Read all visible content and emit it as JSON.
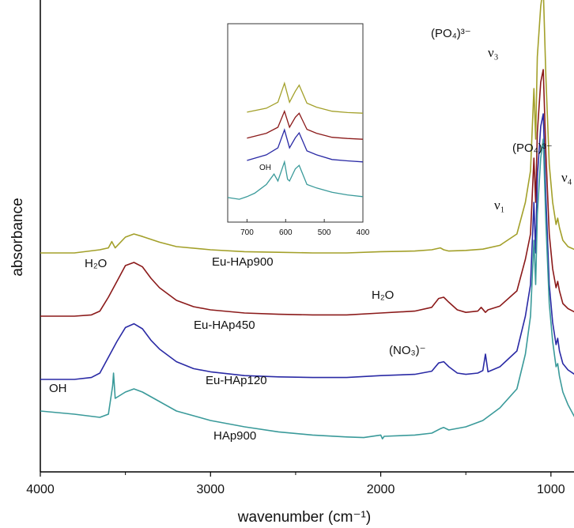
{
  "chart_data": {
    "type": "line",
    "xlabel": "wavenumber (cm⁻¹)",
    "ylabel": "absorbance",
    "xlim": [
      4000,
      400
    ],
    "x_ticks": [
      "4000",
      "3000",
      "2000",
      "1000"
    ],
    "series": [
      {
        "name": "Eu-HAp900",
        "color": "#a3a02a",
        "offset": 3.0,
        "x": [
          4000,
          3800,
          3650,
          3600,
          3580,
          3560,
          3500,
          3450,
          3400,
          3300,
          3200,
          3000,
          2800,
          2600,
          2400,
          2200,
          2000,
          1800,
          1700,
          1650,
          1630,
          1600,
          1500,
          1400,
          1300,
          1200,
          1150,
          1120,
          1100,
          1090,
          1080,
          1060,
          1045,
          1030,
          1010,
          990,
          970,
          960,
          950,
          930,
          900,
          850,
          800,
          700,
          650,
          620,
          603,
          590,
          575,
          565,
          545,
          520,
          480,
          440,
          400
        ],
        "y": [
          0.0,
          0.0,
          0.05,
          0.08,
          0.18,
          0.08,
          0.25,
          0.3,
          0.26,
          0.17,
          0.1,
          0.05,
          0.02,
          0.01,
          0.0,
          0.0,
          0.02,
          0.03,
          0.05,
          0.08,
          0.05,
          0.03,
          0.04,
          0.06,
          0.12,
          0.3,
          0.8,
          1.3,
          2.6,
          1.8,
          3.1,
          3.9,
          4.2,
          2.8,
          1.4,
          0.8,
          0.45,
          0.55,
          0.4,
          0.2,
          0.1,
          0.04,
          0.02,
          0.05,
          0.25,
          0.55,
          1.5,
          0.55,
          1.1,
          1.4,
          0.5,
          0.3,
          0.1,
          0.03,
          0.0
        ]
      },
      {
        "name": "Eu-HAp450",
        "color": "#8b1a1a",
        "offset": 2.0,
        "x": [
          4000,
          3800,
          3700,
          3650,
          3600,
          3550,
          3500,
          3450,
          3400,
          3350,
          3300,
          3200,
          3100,
          3000,
          2800,
          2600,
          2400,
          2200,
          2000,
          1800,
          1700,
          1660,
          1630,
          1600,
          1550,
          1500,
          1430,
          1410,
          1385,
          1370,
          1300,
          1200,
          1150,
          1120,
          1100,
          1090,
          1080,
          1060,
          1045,
          1030,
          1010,
          990,
          970,
          960,
          950,
          930,
          900,
          850,
          800,
          700,
          650,
          620,
          603,
          590,
          575,
          565,
          545,
          520,
          480,
          440,
          400
        ],
        "y": [
          0.0,
          0.0,
          0.02,
          0.08,
          0.3,
          0.55,
          0.8,
          0.85,
          0.78,
          0.6,
          0.45,
          0.25,
          0.15,
          0.1,
          0.05,
          0.03,
          0.02,
          0.02,
          0.05,
          0.08,
          0.14,
          0.28,
          0.3,
          0.22,
          0.1,
          0.06,
          0.08,
          0.14,
          0.06,
          0.1,
          0.16,
          0.4,
          0.9,
          1.3,
          2.5,
          1.8,
          2.9,
          3.7,
          3.9,
          2.6,
          1.3,
          0.75,
          0.45,
          0.55,
          0.4,
          0.2,
          0.12,
          0.05,
          0.03,
          0.06,
          0.3,
          0.6,
          1.4,
          0.6,
          1.1,
          1.3,
          0.5,
          0.3,
          0.1,
          0.04,
          0.0
        ]
      },
      {
        "name": "Eu-HAp120",
        "color": "#2a2aa5",
        "offset": 1.0,
        "x": [
          4000,
          3800,
          3700,
          3650,
          3600,
          3550,
          3500,
          3450,
          3400,
          3350,
          3300,
          3200,
          3100,
          3000,
          2800,
          2600,
          2400,
          2200,
          2000,
          1800,
          1700,
          1660,
          1630,
          1600,
          1550,
          1500,
          1430,
          1400,
          1385,
          1370,
          1300,
          1200,
          1150,
          1120,
          1100,
          1090,
          1080,
          1060,
          1045,
          1030,
          1010,
          990,
          970,
          960,
          950,
          930,
          900,
          850,
          800,
          700,
          650,
          620,
          603,
          590,
          575,
          565,
          545,
          520,
          480,
          440,
          400
        ],
        "y": [
          0.0,
          0.0,
          0.03,
          0.1,
          0.35,
          0.6,
          0.82,
          0.88,
          0.8,
          0.62,
          0.48,
          0.28,
          0.17,
          0.12,
          0.06,
          0.04,
          0.03,
          0.03,
          0.06,
          0.08,
          0.13,
          0.26,
          0.28,
          0.2,
          0.1,
          0.08,
          0.1,
          0.14,
          0.4,
          0.12,
          0.2,
          0.45,
          1.0,
          1.5,
          2.8,
          2.0,
          3.2,
          4.0,
          4.2,
          2.9,
          1.5,
          0.9,
          0.55,
          0.65,
          0.45,
          0.25,
          0.15,
          0.06,
          0.04,
          0.07,
          0.35,
          0.7,
          1.6,
          0.7,
          1.2,
          1.45,
          0.55,
          0.35,
          0.12,
          0.05,
          0.0
        ]
      },
      {
        "name": "HAp900",
        "color": "#3a9a9a",
        "offset": 0.0,
        "x": [
          4000,
          3800,
          3650,
          3600,
          3575,
          3570,
          3560,
          3500,
          3450,
          3400,
          3300,
          3200,
          3000,
          2800,
          2600,
          2400,
          2200,
          2100,
          2000,
          1990,
          1980,
          1800,
          1700,
          1650,
          1630,
          1600,
          1500,
          1400,
          1300,
          1200,
          1150,
          1120,
          1100,
          1090,
          1080,
          1060,
          1045,
          1030,
          1010,
          990,
          970,
          960,
          950,
          930,
          900,
          850,
          800,
          750,
          720,
          700,
          680,
          650,
          630,
          620,
          603,
          595,
          590,
          575,
          565,
          545,
          520,
          480,
          440,
          400
        ],
        "y": [
          0.5,
          0.45,
          0.4,
          0.45,
          0.9,
          1.1,
          0.7,
          0.8,
          0.85,
          0.8,
          0.65,
          0.5,
          0.35,
          0.25,
          0.17,
          0.12,
          0.09,
          0.08,
          0.12,
          0.06,
          0.1,
          0.12,
          0.15,
          0.22,
          0.24,
          0.2,
          0.25,
          0.35,
          0.55,
          0.85,
          1.4,
          2.0,
          3.2,
          2.5,
          3.6,
          4.5,
          4.8,
          3.5,
          2.2,
          1.6,
          1.2,
          1.25,
          1.05,
          0.8,
          0.6,
          0.35,
          0.15,
          -0.05,
          -0.15,
          0.0,
          0.2,
          0.7,
          1.3,
          0.9,
          2.0,
          1.0,
          0.9,
          1.6,
          1.8,
          0.7,
          0.5,
          0.25,
          0.1,
          0.0
        ]
      }
    ],
    "annotations": [
      {
        "text": "(PO₄)³⁻",
        "note": "near 1050"
      },
      {
        "text": "ν₃",
        "note": "near 1050"
      },
      {
        "text": "ν₁",
        "note": "near 960"
      },
      {
        "text": "(PO₄)³⁻",
        "note": "near 600"
      },
      {
        "text": "ν₄",
        "note": "near 560"
      },
      {
        "text": "H₂O",
        "note": "near 3450"
      },
      {
        "text": "H₂O",
        "note": "near 1630"
      },
      {
        "text": "(NO₃)⁻",
        "note": "near 1385"
      },
      {
        "text": "OH",
        "note": "near 3570"
      }
    ],
    "inset": {
      "xlim": [
        750,
        400
      ],
      "x_ticks": [
        "700",
        "600",
        "500",
        "400"
      ],
      "label": "OH"
    }
  }
}
